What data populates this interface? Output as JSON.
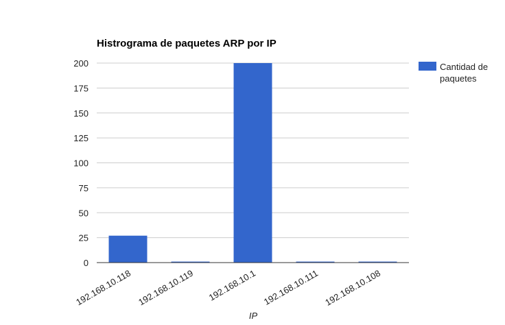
{
  "chart_data": {
    "type": "bar",
    "title": "Histrograma de paquetes ARP por IP",
    "xlabel": "IP",
    "ylabel": "",
    "categories": [
      "192.168.10.118",
      "192.168.10.119",
      "192.168.10.1",
      "192.168.10.111",
      "192.168.10.108"
    ],
    "series": [
      {
        "name": "Cantidad de paquetes",
        "values": [
          27,
          1,
          200,
          1,
          1
        ],
        "color": "#3366cc"
      }
    ],
    "ylim": [
      0,
      200
    ],
    "yticks": [
      0,
      25,
      50,
      75,
      100,
      125,
      150,
      175,
      200
    ],
    "grid": true,
    "legend": {
      "placement": "right",
      "lines": [
        "Cantidad de",
        "paquetes"
      ]
    }
  }
}
